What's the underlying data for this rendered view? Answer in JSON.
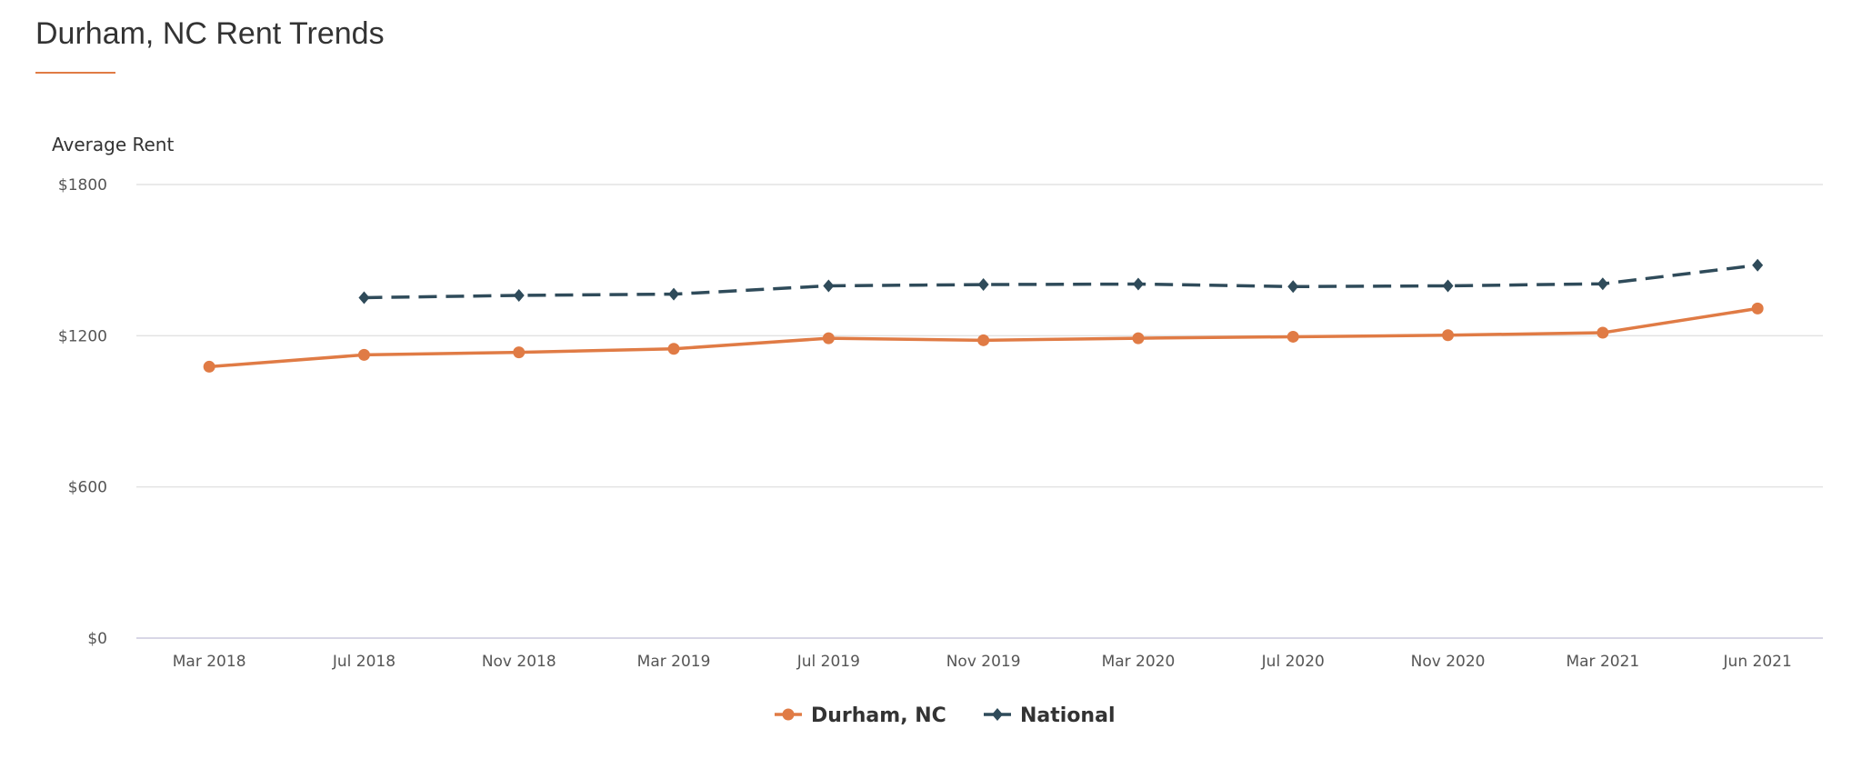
{
  "title": "Durham, NC Rent Trends",
  "colors": {
    "accent": "#e07b45",
    "durham": "#e07b45",
    "national": "#2f4b5a",
    "grid": "#e3e3e3"
  },
  "chart_data": {
    "type": "line",
    "ylabel": "Average Rent",
    "ylim": [
      0,
      1800
    ],
    "yticks": [
      "$0",
      "$600",
      "$1200",
      "$1800"
    ],
    "ytick_values": [
      0,
      600,
      1200,
      1800
    ],
    "categories": [
      "Mar 2018",
      "Jul 2018",
      "Nov 2018",
      "Mar 2019",
      "Jul 2019",
      "Nov 2019",
      "Mar 2020",
      "Jul 2020",
      "Nov 2020",
      "Mar 2021",
      "Jun 2021"
    ],
    "grid": true,
    "legend_position": "bottom",
    "series": [
      {
        "name": "Durham, NC",
        "marker": "circle",
        "line": "solid",
        "color": "#e07b45",
        "values": [
          1077,
          1124,
          1134,
          1148,
          1190,
          1182,
          1190,
          1196,
          1202,
          1212,
          1308
        ]
      },
      {
        "name": "National",
        "marker": "diamond",
        "line": "dashed",
        "color": "#2f4b5a",
        "values": [
          null,
          1351,
          1360,
          1365,
          1398,
          1403,
          1405,
          1395,
          1398,
          1406,
          1480
        ]
      }
    ]
  }
}
